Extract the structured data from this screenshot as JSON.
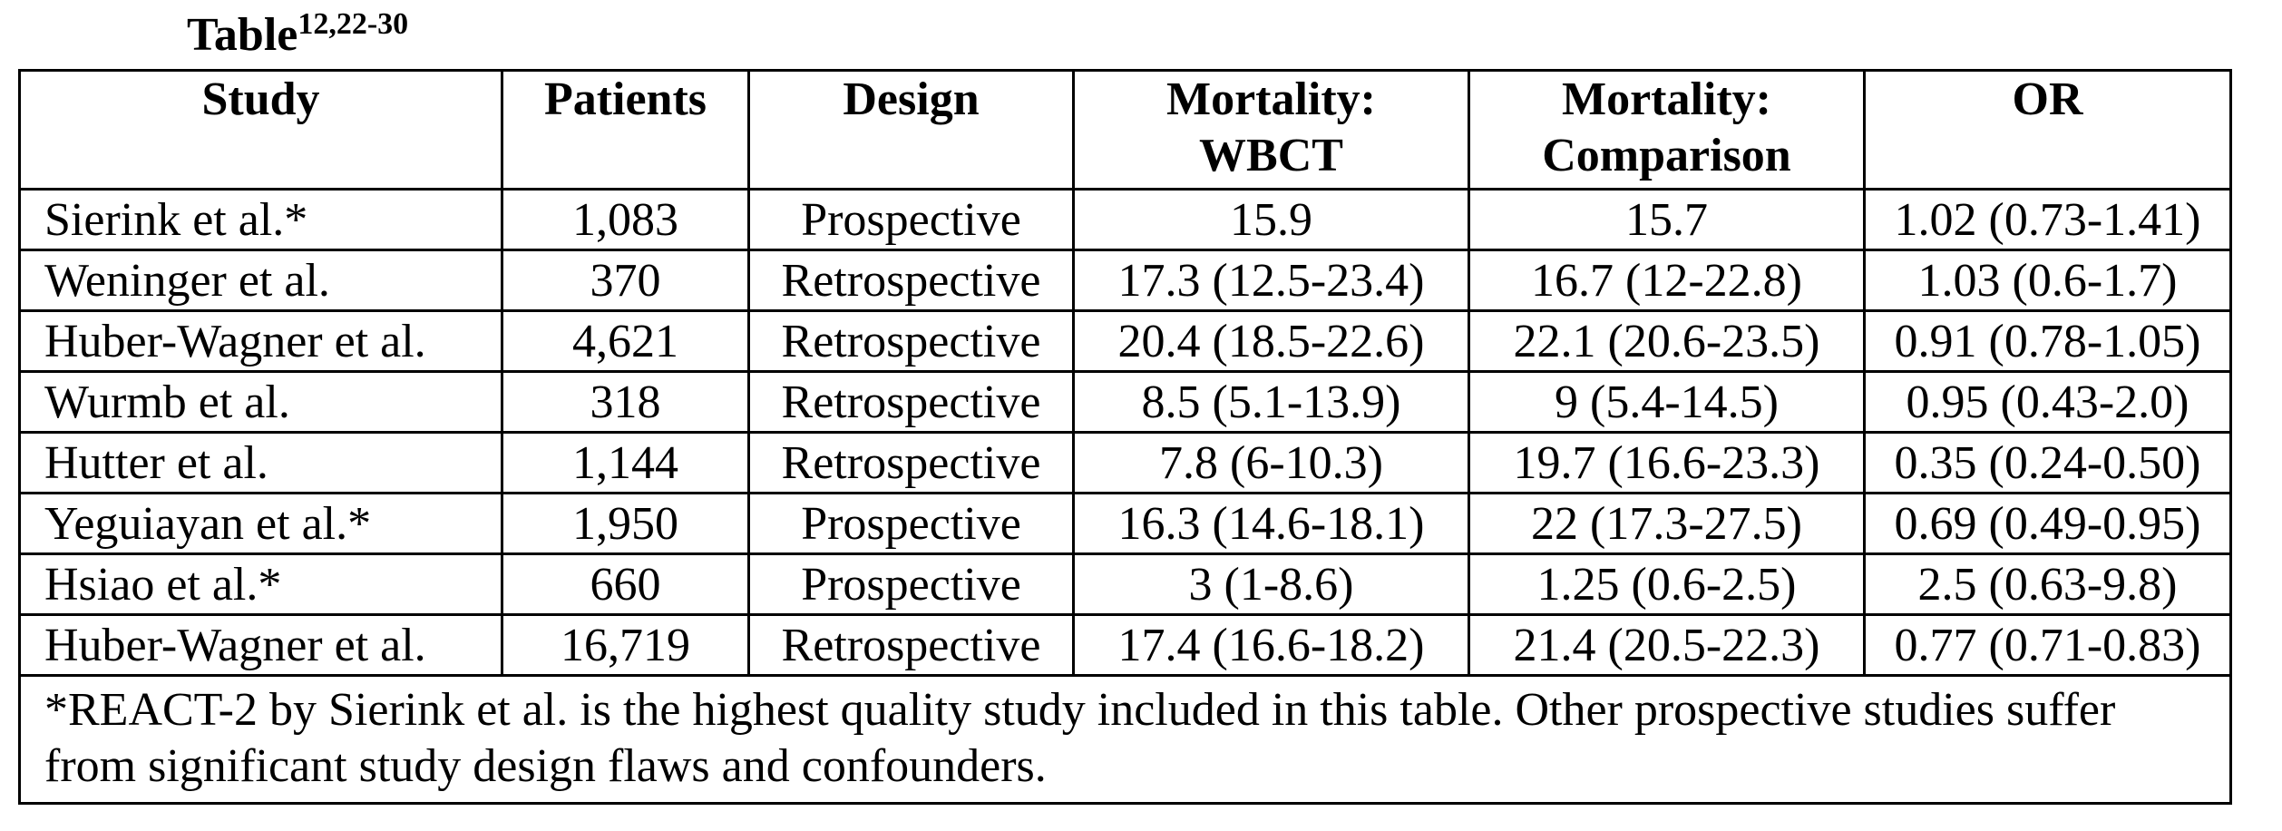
{
  "caption": {
    "label": "Table",
    "refs": "12,22-30"
  },
  "table": {
    "headers": [
      {
        "lines": [
          "Study"
        ]
      },
      {
        "lines": [
          "Patients"
        ]
      },
      {
        "lines": [
          "Design"
        ]
      },
      {
        "lines": [
          "Mortality:",
          "WBCT"
        ]
      },
      {
        "lines": [
          "Mortality:",
          "Comparison"
        ]
      },
      {
        "lines": [
          "OR"
        ]
      }
    ],
    "rows": [
      {
        "study": "Sierink et al.*",
        "patients": "1,083",
        "design": "Prospective",
        "mortality_wbct": "15.9",
        "mortality_comparison": "15.7",
        "or": "1.02 (0.73-1.41)"
      },
      {
        "study": "Weninger et al.",
        "patients": "370",
        "design": "Retrospective",
        "mortality_wbct": "17.3 (12.5-23.4)",
        "mortality_comparison": "16.7 (12-22.8)",
        "or": "1.03 (0.6-1.7)"
      },
      {
        "study": "Huber-Wagner et al.",
        "patients": "4,621",
        "design": "Retrospective",
        "mortality_wbct": "20.4 (18.5-22.6)",
        "mortality_comparison": "22.1 (20.6-23.5)",
        "or": "0.91 (0.78-1.05)"
      },
      {
        "study": "Wurmb et al.",
        "patients": "318",
        "design": "Retrospective",
        "mortality_wbct": "8.5 (5.1-13.9)",
        "mortality_comparison": "9 (5.4-14.5)",
        "or": "0.95 (0.43-2.0)"
      },
      {
        "study": "Hutter et al.",
        "patients": "1,144",
        "design": "Retrospective",
        "mortality_wbct": "7.8 (6-10.3)",
        "mortality_comparison": "19.7 (16.6-23.3)",
        "or": "0.35 (0.24-0.50)"
      },
      {
        "study": "Yeguiayan et al.*",
        "patients": "1,950",
        "design": "Prospective",
        "mortality_wbct": "16.3 (14.6-18.1)",
        "mortality_comparison": "22 (17.3-27.5)",
        "or": "0.69 (0.49-0.95)"
      },
      {
        "study": "Hsiao et al.*",
        "patients": "660",
        "design": "Prospective",
        "mortality_wbct": "3 (1-8.6)",
        "mortality_comparison": "1.25 (0.6-2.5)",
        "or": "2.5 (0.63-9.8)"
      },
      {
        "study": "Huber-Wagner et al.",
        "patients": "16,719",
        "design": "Retrospective",
        "mortality_wbct": "17.4 (16.6-18.2)",
        "mortality_comparison": "21.4 (20.5-22.3)",
        "or": "0.77 (0.71-0.83)"
      }
    ],
    "footnote": "*REACT-2 by Sierink et al. is the highest quality study included in this table. Other prospective studies suffer from significant study design flaws and confounders."
  }
}
